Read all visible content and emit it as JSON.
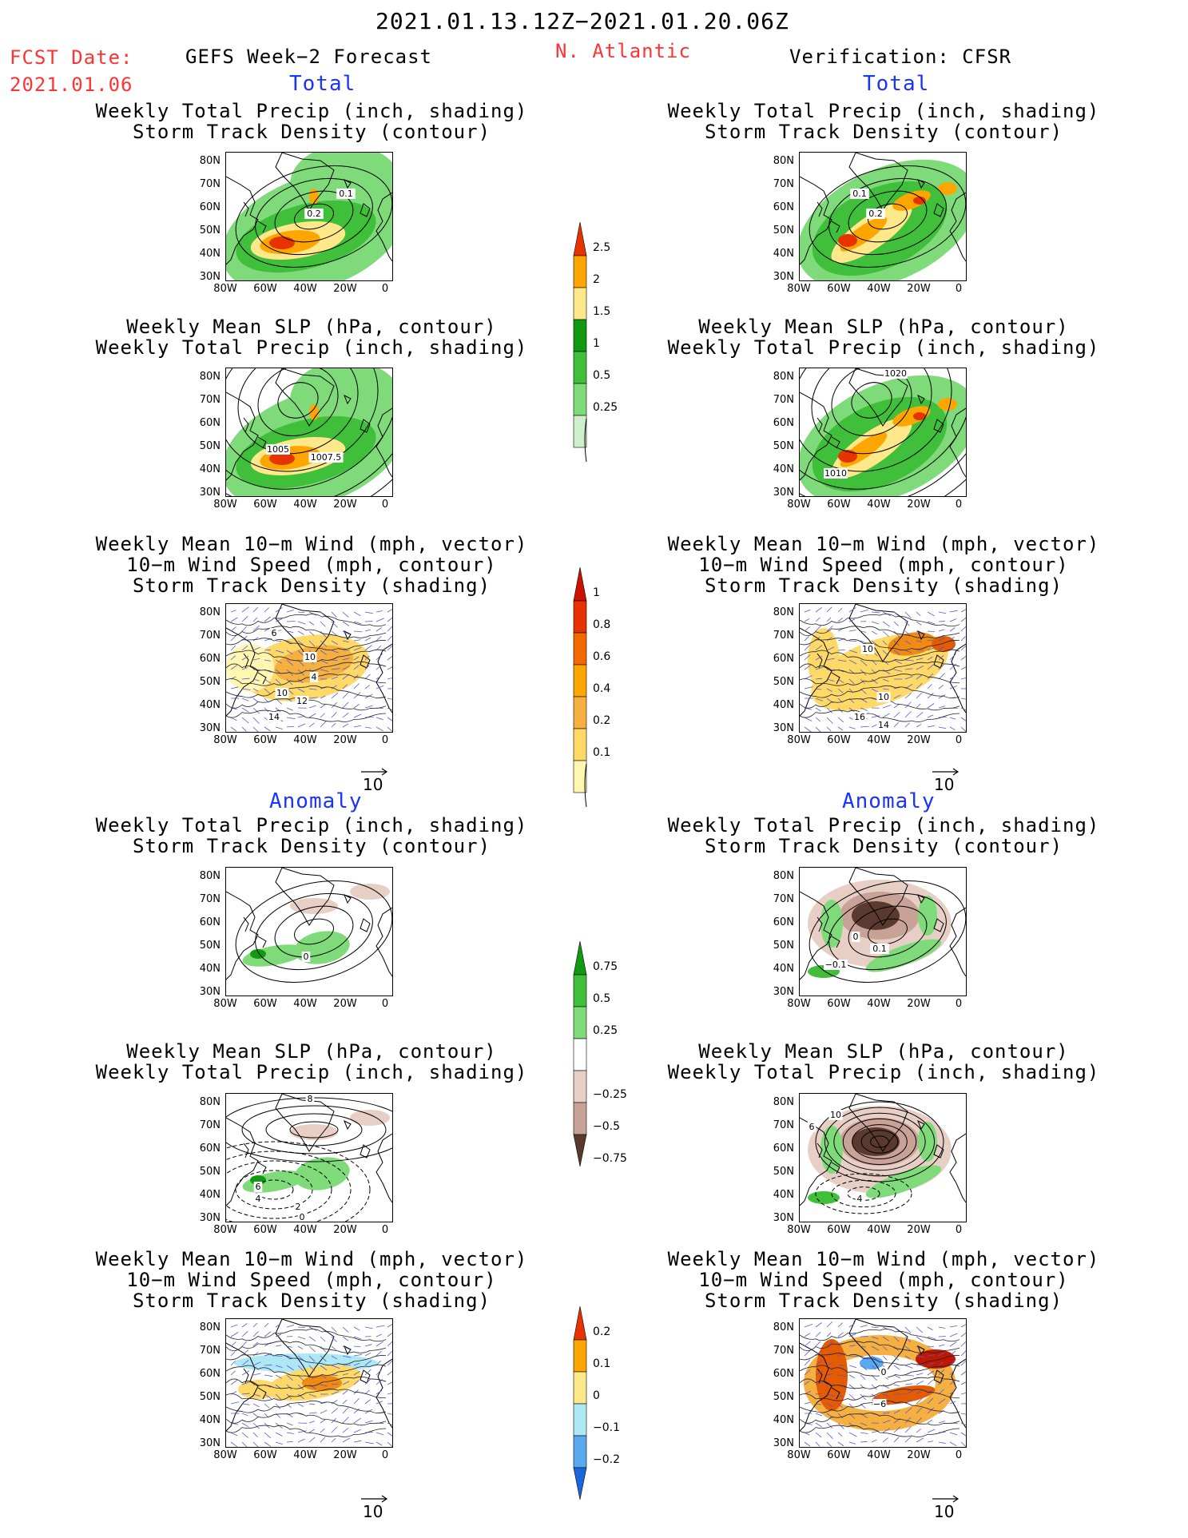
{
  "header": {
    "date_range": "2021.01.13.12Z−2021.01.20.06Z",
    "fcst_label": "FCST Date:",
    "fcst_date": "2021.01.06",
    "left_title": "GEFS Week−2 Forecast",
    "region": "N. Atlantic",
    "right_title": "Verification: CFSR"
  },
  "sections": {
    "total": "Total",
    "anomaly": "Anomaly"
  },
  "titles": {
    "precip_track": [
      "Weekly Total Precip (inch, shading)",
      "Storm Track Density (contour)"
    ],
    "slp_precip": [
      "Weekly Mean SLP (hPa, contour)",
      "Weekly Total Precip (inch, shading)"
    ],
    "wind": [
      "Weekly Mean 10−m Wind (mph, vector)",
      "10−m Wind Speed (mph, contour)",
      "Storm Track Density (shading)"
    ]
  },
  "axes": {
    "lat": [
      "80N",
      "70N",
      "60N",
      "50N",
      "40N",
      "30N"
    ],
    "lon": [
      "80W",
      "60W",
      "40W",
      "20W",
      "0"
    ]
  },
  "vector_ref": "10",
  "colorbars": {
    "precip_total": [
      "2.5",
      "2",
      "1.5",
      "1",
      "0.5",
      "0.25"
    ],
    "track_total": [
      "1",
      "0.8",
      "0.6",
      "0.4",
      "0.2",
      "0.1"
    ],
    "precip_anom": [
      "0.75",
      "0.5",
      "0.25",
      "−0.25",
      "−0.5",
      "−0.75"
    ],
    "track_anom": [
      "0.2",
      "0.1",
      "0",
      "−0.1",
      "−0.2"
    ]
  },
  "contour_labels": {
    "p1l": [
      "0.1",
      "0.2"
    ],
    "p1r": [
      "0.1",
      "0.2"
    ],
    "p2l": [
      "1005",
      "1007.5"
    ],
    "p2r": [
      "1020",
      "1010"
    ],
    "p3l": [
      "6",
      "10",
      "4",
      "10",
      "12",
      "14"
    ],
    "p3r": [
      "10",
      "10",
      "16",
      "14"
    ],
    "p4l": [
      "0"
    ],
    "p4r": [
      "0",
      "0.1",
      "−0.1"
    ],
    "p5l": [
      "8",
      "6",
      "4",
      "2",
      "0"
    ],
    "p5r": [
      "10",
      "6",
      "4"
    ],
    "p6l": [],
    "p6r": [
      "0",
      "−6"
    ]
  },
  "colors": {
    "red_text": "#ff3333",
    "blue_text": "#1a33ff"
  }
}
